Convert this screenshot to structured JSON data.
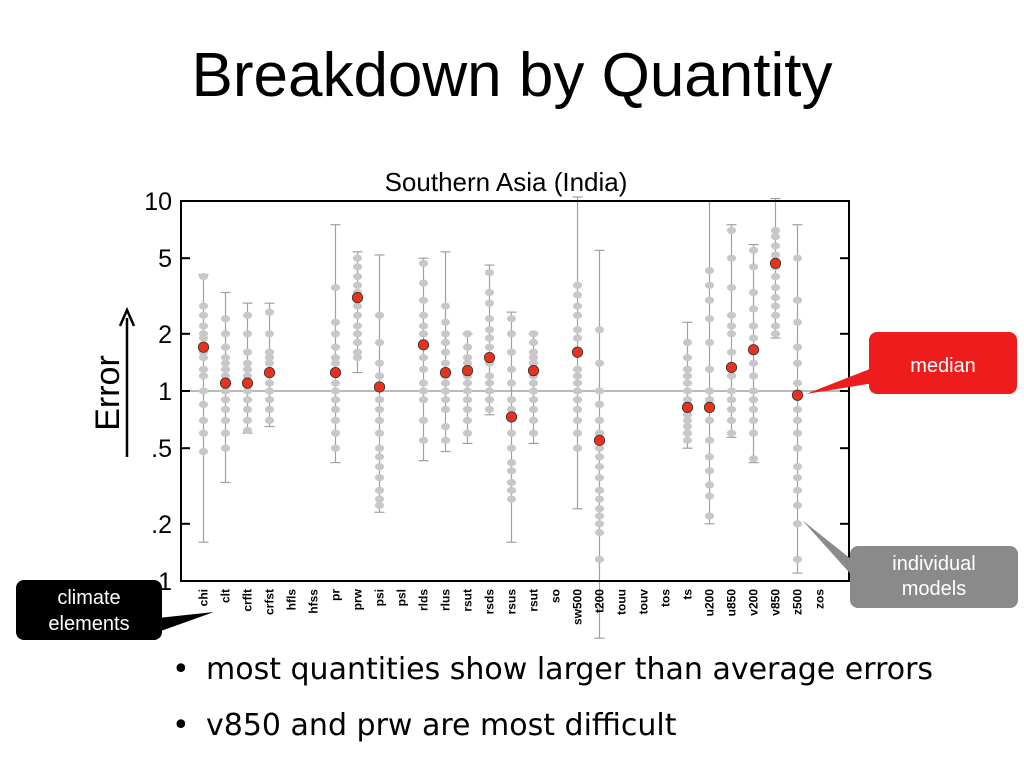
{
  "slide": {
    "title": "Breakdown by Quantity",
    "bullet_marker": "•",
    "bullets": [
      "most quantities show larger than average errors",
      "v850 and prw are most difficult"
    ]
  },
  "callouts": {
    "median": "median",
    "individual_models": [
      "individual",
      "models"
    ],
    "climate_elements": [
      "climate",
      "elements"
    ]
  },
  "colors": {
    "median_fill": "#e8311f",
    "median_callout": "#ee1c1c",
    "models_callout": "#8a8a8a",
    "climate_callout": "#000000",
    "model_dots": "#c8c8c8"
  },
  "chart_data": {
    "type": "scatter",
    "title": "Southern Asia (India)",
    "ylabel": "Error",
    "yscale": "log",
    "ylim": [
      0.1,
      10
    ],
    "yticks": [
      10,
      5,
      2,
      1,
      0.5,
      0.2,
      0.1
    ],
    "ytick_labels": [
      "10",
      "5",
      "2",
      "1",
      ".5",
      ".2",
      ".1"
    ],
    "reference_line": 1,
    "categories": [
      "chi",
      "clt",
      "crflt",
      "crfst",
      "hfls",
      "hfss",
      "pr",
      "prw",
      "psi",
      "psl",
      "rlds",
      "rlus",
      "rsut",
      "rsds",
      "rsus",
      "rsut",
      "so",
      "sw500",
      "t200",
      "touu",
      "touv",
      "tos",
      "ts",
      "u200",
      "u850",
      "v200",
      "v850",
      "z500",
      "zos"
    ],
    "median": [
      1.7,
      1.1,
      1.1,
      1.25,
      null,
      null,
      1.25,
      3.1,
      1.05,
      null,
      1.75,
      1.25,
      1.28,
      1.5,
      0.73,
      1.28,
      null,
      1.6,
      0.55,
      null,
      null,
      null,
      0.82,
      0.82,
      1.33,
      1.65,
      4.7,
      0.95,
      null
    ],
    "range": [
      [
        0.16,
        4.1
      ],
      [
        0.33,
        3.3
      ],
      [
        0.6,
        2.9
      ],
      [
        0.65,
        2.9
      ],
      null,
      null,
      [
        0.42,
        7.5
      ],
      [
        1.25,
        5.4
      ],
      [
        0.23,
        5.2
      ],
      null,
      [
        0.43,
        5.0
      ],
      [
        0.48,
        5.4
      ],
      [
        0.53,
        2.0
      ],
      [
        0.75,
        4.6
      ],
      [
        0.16,
        2.6
      ],
      [
        0.53,
        2.0
      ],
      null,
      [
        0.24,
        10.5
      ],
      [
        0.05,
        5.5
      ],
      null,
      null,
      null,
      [
        0.5,
        2.3
      ],
      [
        0.2,
        10.0
      ],
      [
        0.57,
        7.5
      ],
      [
        0.42,
        5.9
      ],
      [
        1.9,
        10.3
      ],
      [
        0.11,
        7.5
      ],
      null
    ],
    "models": [
      [
        4.0,
        2.8,
        2.5,
        2.2,
        2.0,
        1.9,
        1.6,
        1.5,
        1.3,
        1.2,
        1.0,
        0.85,
        0.7,
        0.6,
        0.48
      ],
      [
        2.4,
        2.0,
        1.7,
        1.5,
        1.4,
        1.3,
        1.2,
        1.0,
        0.9,
        0.8,
        0.7,
        0.6,
        0.5
      ],
      [
        2.5,
        2.0,
        1.6,
        1.4,
        1.3,
        1.2,
        1.0,
        0.9,
        0.8,
        0.7,
        0.62
      ],
      [
        2.6,
        2.0,
        1.6,
        1.5,
        1.4,
        1.1,
        1.0,
        0.9,
        0.8,
        0.7
      ],
      null,
      null,
      [
        3.5,
        2.3,
        2.0,
        1.7,
        1.5,
        1.4,
        1.1,
        1.0,
        0.9,
        0.8,
        0.7,
        0.6,
        0.5
      ],
      [
        5.0,
        4.5,
        4.0,
        3.6,
        3.3,
        2.8,
        2.5,
        2.2,
        2.0,
        1.8,
        1.6,
        1.5
      ],
      [
        2.5,
        1.8,
        1.4,
        1.2,
        0.9,
        0.8,
        0.7,
        0.6,
        0.5,
        0.45,
        0.4,
        0.35,
        0.3,
        0.27,
        0.25
      ],
      null,
      [
        4.7,
        3.7,
        3.0,
        2.5,
        2.2,
        2.0,
        1.5,
        1.3,
        1.1,
        1.0,
        0.9,
        0.7,
        0.55
      ],
      [
        2.8,
        2.3,
        2.0,
        1.8,
        1.6,
        1.4,
        1.2,
        1.1,
        1.0,
        0.9,
        0.8,
        0.65,
        0.55
      ],
      [
        2.0,
        1.7,
        1.5,
        1.4,
        1.2,
        1.1,
        1.0,
        0.9,
        0.8,
        0.7,
        0.6
      ],
      [
        4.2,
        3.3,
        2.9,
        2.4,
        2.1,
        1.9,
        1.7,
        1.4,
        1.2,
        1.1,
        1.0,
        0.9,
        0.8
      ],
      [
        2.4,
        2.0,
        1.6,
        1.3,
        1.1,
        0.9,
        0.8,
        0.6,
        0.5,
        0.42,
        0.38,
        0.33,
        0.3,
        0.27
      ],
      [
        2.0,
        1.8,
        1.6,
        1.5,
        1.4,
        1.2,
        1.1,
        1.0,
        0.9,
        0.8,
        0.7,
        0.6
      ],
      null,
      [
        3.6,
        3.2,
        2.8,
        2.5,
        2.1,
        1.9,
        1.6,
        1.3,
        1.2,
        1.1,
        1.0,
        0.9,
        0.8,
        0.7,
        0.6,
        0.5
      ],
      [
        2.1,
        1.4,
        1.0,
        0.85,
        0.7,
        0.6,
        0.5,
        0.45,
        0.4,
        0.35,
        0.3,
        0.27,
        0.24,
        0.22,
        0.2,
        0.18,
        0.13
      ],
      null,
      null,
      null,
      [
        1.8,
        1.5,
        1.3,
        1.2,
        1.1,
        1.0,
        0.9,
        0.85,
        0.75,
        0.7,
        0.65,
        0.6,
        0.55
      ],
      [
        4.3,
        3.6,
        3.0,
        2.4,
        1.8,
        1.3,
        1.0,
        0.9,
        0.7,
        0.55,
        0.45,
        0.38,
        0.32,
        0.28,
        0.22
      ],
      [
        7.0,
        5.0,
        3.5,
        2.5,
        2.2,
        2.0,
        1.6,
        1.2,
        1.0,
        0.9,
        0.8,
        0.7,
        0.6
      ],
      [
        5.5,
        4.5,
        3.3,
        2.7,
        2.2,
        1.9,
        1.4,
        1.2,
        1.0,
        0.9,
        0.8,
        0.7,
        0.6,
        0.44
      ],
      [
        7.0,
        6.5,
        5.8,
        5.2,
        4.5,
        4.0,
        3.5,
        3.1,
        2.8,
        2.5,
        2.2,
        2.0
      ],
      [
        5.0,
        3.0,
        2.3,
        1.7,
        1.4,
        1.1,
        0.8,
        0.7,
        0.6,
        0.5,
        0.4,
        0.35,
        0.3,
        0.25,
        0.2,
        0.13
      ],
      null
    ]
  }
}
